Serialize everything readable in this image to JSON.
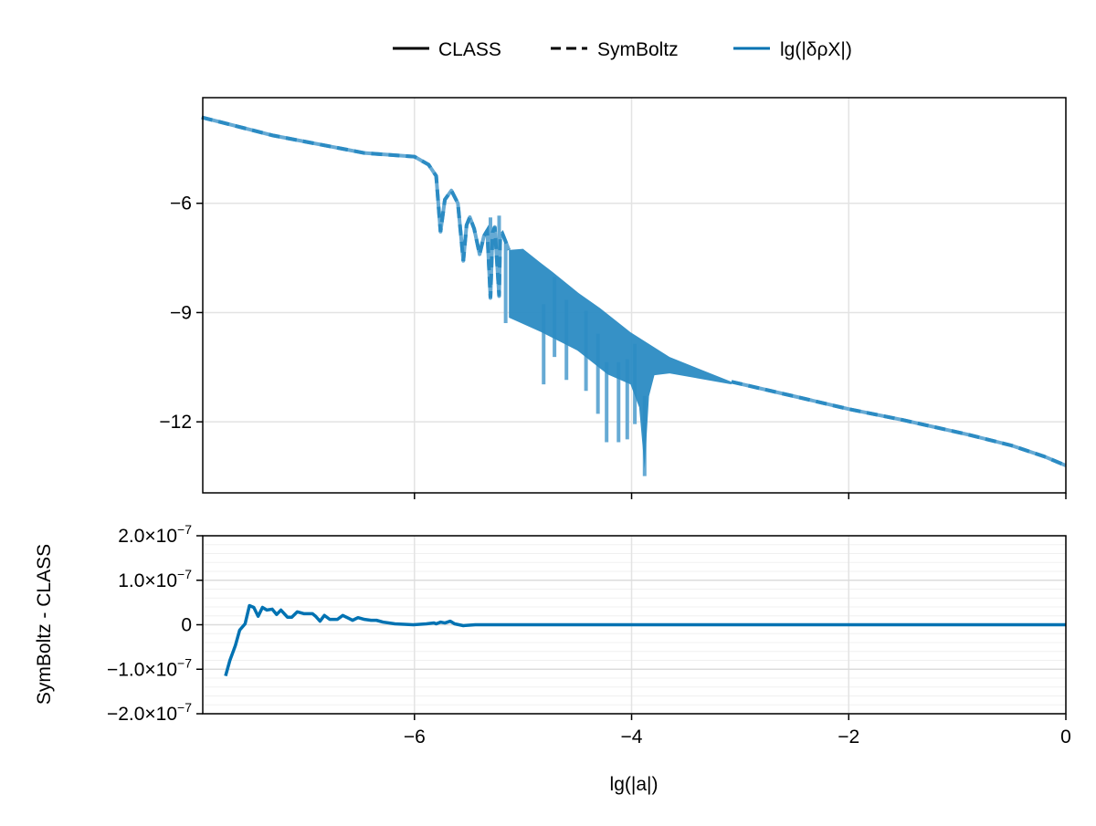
{
  "legend": {
    "placement": "top-center",
    "items": [
      {
        "label": "CLASS",
        "style": "solid",
        "color": "#000000"
      },
      {
        "label": "SymBoltz",
        "style": "dashed",
        "color": "#000000"
      },
      {
        "label": "lg(|δρX|)",
        "style": "solid",
        "color": "#0072b2"
      }
    ]
  },
  "colors": {
    "series": "#0072b2",
    "band": "#2b8bc3",
    "light": "#66aad4",
    "grid": "#e3e3e3"
  },
  "chart_data": [
    {
      "type": "line",
      "title": "",
      "xlabel": "",
      "ylabel": "",
      "xlim": [
        -7.95,
        0
      ],
      "ylim": [
        -13.95,
        -3.1
      ],
      "grid": true,
      "xticks": [
        -6,
        -4,
        -2,
        0
      ],
      "yticks": [
        -6,
        -9,
        -12
      ],
      "ytick_labels": [
        "−6",
        "−9",
        "−12"
      ],
      "series": [
        {
          "name": "CLASS",
          "style": "solid"
        },
        {
          "name": "SymBoltz",
          "style": "dashed"
        }
      ],
      "curve": [
        [
          -7.96,
          -3.64
        ],
        [
          -7.3,
          -4.14
        ],
        [
          -6.46,
          -4.62
        ],
        [
          -6.0,
          -4.72
        ],
        [
          -5.87,
          -4.94
        ],
        [
          -5.8,
          -5.25
        ],
        [
          -5.76,
          -6.78
        ],
        [
          -5.72,
          -5.9
        ],
        [
          -5.66,
          -5.65
        ],
        [
          -5.6,
          -6.0
        ],
        [
          -5.55,
          -7.58
        ],
        [
          -5.52,
          -6.6
        ],
        [
          -5.49,
          -6.38
        ],
        [
          -5.45,
          -6.7
        ],
        [
          -5.4,
          -7.4
        ],
        [
          -5.36,
          -6.9
        ],
        [
          -5.33,
          -6.75
        ],
        [
          -5.3,
          -8.6
        ],
        [
          -5.28,
          -6.8
        ],
        [
          -5.26,
          -6.65
        ],
        [
          -5.22,
          -8.55
        ],
        [
          -5.21,
          -6.9
        ],
        [
          -5.19,
          -6.83
        ],
        [
          -5.13,
          -7.28
        ]
      ],
      "band_upper": [
        [
          -5.13,
          -7.28
        ],
        [
          -5.0,
          -7.25
        ],
        [
          -4.84,
          -7.63
        ],
        [
          -4.73,
          -7.88
        ],
        [
          -4.49,
          -8.46
        ],
        [
          -4.29,
          -8.88
        ],
        [
          -4.01,
          -9.54
        ],
        [
          -3.65,
          -10.22
        ],
        [
          -3.08,
          -10.9
        ]
      ],
      "band_lower": [
        [
          -5.13,
          -9.14
        ],
        [
          -4.83,
          -9.54
        ],
        [
          -4.5,
          -10.04
        ],
        [
          -4.22,
          -10.7
        ],
        [
          -4.01,
          -10.97
        ],
        [
          -3.93,
          -11.6
        ],
        [
          -3.88,
          -13.3
        ],
        [
          -3.84,
          -11.3
        ],
        [
          -3.79,
          -10.72
        ],
        [
          -3.65,
          -10.67
        ],
        [
          -3.08,
          -10.97
        ]
      ],
      "tail": [
        [
          -3.08,
          -10.9
        ],
        [
          -2.5,
          -11.3
        ],
        [
          -2.0,
          -11.65
        ],
        [
          -1.5,
          -11.95
        ],
        [
          -0.9,
          -12.35
        ],
        [
          -0.5,
          -12.65
        ],
        [
          -0.2,
          -12.95
        ],
        [
          0,
          -13.2
        ]
      ],
      "spikes": [
        [
          -5.3,
          -8.59
        ],
        [
          -5.22,
          -8.54
        ],
        [
          -5.16,
          -9.29
        ],
        [
          -4.81,
          -10.97
        ],
        [
          -4.71,
          -10.22
        ],
        [
          -4.6,
          -10.85
        ],
        [
          -4.42,
          -11.15
        ],
        [
          -4.31,
          -11.78
        ],
        [
          -4.23,
          -12.56
        ],
        [
          -4.12,
          -12.56
        ],
        [
          -4.04,
          -12.48
        ],
        [
          -3.97,
          -12.06
        ],
        [
          -3.88,
          -13.49
        ]
      ]
    },
    {
      "type": "line",
      "title": "",
      "xlabel": "lg(|a|)",
      "ylabel": "SymBoltz - CLASS",
      "xlim": [
        -7.95,
        0
      ],
      "ylim": [
        -2e-07,
        2e-07
      ],
      "grid": true,
      "xticks": [
        -6,
        -4,
        -2,
        0
      ],
      "xtick_labels": [
        "−6",
        "−4",
        "−2",
        "0"
      ],
      "yticks": [
        2e-07,
        1e-07,
        0,
        -1e-07,
        -2e-07
      ],
      "ytick_labels": [
        {
          "m": "2.0×10",
          "e": "−7"
        },
        {
          "m": "1.0×10",
          "e": "−7"
        },
        {
          "m": "0",
          "e": ""
        },
        {
          "m": "−1.0×10",
          "e": "−7"
        },
        {
          "m": "−2.0×10",
          "e": "−7"
        }
      ],
      "x": [
        -7.74,
        -7.7,
        -7.65,
        -7.61,
        -7.56,
        -7.52,
        -7.48,
        -7.44,
        -7.4,
        -7.36,
        -7.31,
        -7.27,
        -7.23,
        -7.17,
        -7.13,
        -7.08,
        -7.02,
        -6.94,
        -6.91,
        -6.87,
        -6.83,
        -6.78,
        -6.71,
        -6.66,
        -6.57,
        -6.52,
        -6.46,
        -6.4,
        -6.35,
        -6.29,
        -6.18,
        -6.01,
        -5.89,
        -5.82,
        -5.8,
        -5.76,
        -5.72,
        -5.67,
        -5.63,
        -5.55,
        -5.44,
        -5.0,
        -4.0,
        -3.0,
        -2.0,
        -1.0,
        0
      ],
      "y": [
        -1.15e-07,
        -8e-08,
        -4.7e-08,
        -1.2e-08,
        2e-09,
        4.3e-08,
        3.9e-08,
        1.9e-08,
        3.9e-08,
        3.3e-08,
        3.5e-08,
        2.3e-08,
        3.3e-08,
        1.7e-08,
        1.7e-08,
        2.9e-08,
        2.5e-08,
        2.5e-08,
        1.9e-08,
        8e-09,
        2.1e-08,
        1.2e-08,
        1.2e-08,
        2.1e-08,
        1e-08,
        1.6e-08,
        1.2e-08,
        1e-08,
        1e-08,
        6e-09,
        2e-09,
        0,
        2e-09,
        4e-09,
        2e-09,
        6e-09,
        4e-09,
        8e-09,
        2e-09,
        -2e-09,
        0,
        0,
        0,
        0,
        0,
        0,
        0
      ]
    }
  ]
}
